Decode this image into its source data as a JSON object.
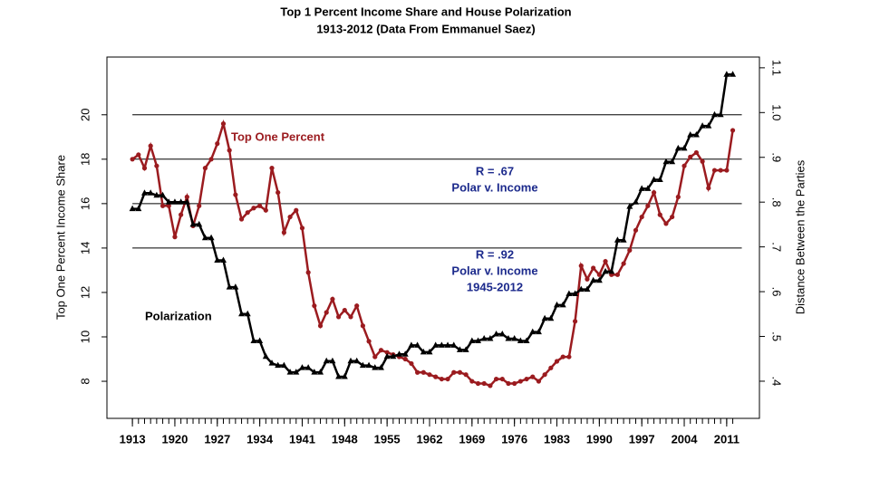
{
  "chart_data": {
    "type": "line",
    "title": "Top 1 Percent Income Share and House Polarization",
    "subtitle": "1913-2012 (Data From Emmanuel Saez)",
    "y_label": "Top One Percent Income Share",
    "y2_label": "Distance Between the Parties",
    "x": [
      1913,
      1914,
      1915,
      1916,
      1917,
      1918,
      1919,
      1920,
      1921,
      1922,
      1923,
      1924,
      1925,
      1926,
      1927,
      1928,
      1929,
      1930,
      1931,
      1932,
      1933,
      1934,
      1935,
      1936,
      1937,
      1938,
      1939,
      1940,
      1941,
      1942,
      1943,
      1944,
      1945,
      1946,
      1947,
      1948,
      1949,
      1950,
      1951,
      1952,
      1953,
      1954,
      1955,
      1956,
      1957,
      1958,
      1959,
      1960,
      1961,
      1962,
      1963,
      1964,
      1965,
      1966,
      1967,
      1968,
      1969,
      1970,
      1971,
      1972,
      1973,
      1974,
      1975,
      1976,
      1977,
      1978,
      1979,
      1980,
      1981,
      1982,
      1983,
      1984,
      1985,
      1986,
      1987,
      1988,
      1989,
      1990,
      1991,
      1992,
      1993,
      1994,
      1995,
      1996,
      1997,
      1998,
      1999,
      2000,
      2001,
      2002,
      2003,
      2004,
      2005,
      2006,
      2007,
      2008,
      2009,
      2010,
      2011,
      2012
    ],
    "series": [
      {
        "name": "Top One Percent",
        "color": "#9b1b1f",
        "marker": "circle",
        "axis": "y",
        "values": [
          18.0,
          18.2,
          17.6,
          18.6,
          17.7,
          15.9,
          15.9,
          14.5,
          15.5,
          16.3,
          15.0,
          15.9,
          17.6,
          18.0,
          18.7,
          19.6,
          18.4,
          16.4,
          15.3,
          15.6,
          15.8,
          15.9,
          15.7,
          17.6,
          16.5,
          14.7,
          15.4,
          15.7,
          14.9,
          12.9,
          11.4,
          10.5,
          11.1,
          11.7,
          10.9,
          11.2,
          10.9,
          11.4,
          10.5,
          9.8,
          9.1,
          9.4,
          9.3,
          9.2,
          9.1,
          9.0,
          8.8,
          8.4,
          8.4,
          8.3,
          8.2,
          8.1,
          8.1,
          8.4,
          8.4,
          8.3,
          8.0,
          7.9,
          7.9,
          7.8,
          8.1,
          8.1,
          7.9,
          7.9,
          8.0,
          8.1,
          8.2,
          8.0,
          8.3,
          8.6,
          8.9,
          9.1,
          9.1,
          10.7,
          13.2,
          12.6,
          13.1,
          12.8,
          13.4,
          12.8,
          12.8,
          13.3,
          13.9,
          14.8,
          15.4,
          15.9,
          16.5,
          15.5,
          15.1,
          15.4,
          16.3,
          17.7,
          18.1,
          18.3,
          17.9,
          16.7,
          17.5,
          17.5,
          17.5,
          19.3
        ]
      },
      {
        "name": "Polarization",
        "color": "#000000",
        "marker": "triangle",
        "axis": "y2",
        "values": [
          0.785,
          0.785,
          0.82,
          0.82,
          0.815,
          0.815,
          0.8,
          0.8,
          0.8,
          0.8,
          0.75,
          0.75,
          0.72,
          0.72,
          0.67,
          0.67,
          0.61,
          0.61,
          0.55,
          0.55,
          0.49,
          0.49,
          0.455,
          0.44,
          0.435,
          0.435,
          0.42,
          0.42,
          0.43,
          0.43,
          0.42,
          0.42,
          0.445,
          0.445,
          0.41,
          0.41,
          0.445,
          0.445,
          0.435,
          0.435,
          0.43,
          0.43,
          0.455,
          0.455,
          0.46,
          0.46,
          0.48,
          0.48,
          0.465,
          0.465,
          0.48,
          0.48,
          0.48,
          0.48,
          0.47,
          0.47,
          0.49,
          0.49,
          0.495,
          0.495,
          0.505,
          0.505,
          0.495,
          0.495,
          0.49,
          0.49,
          0.51,
          0.51,
          0.54,
          0.54,
          0.57,
          0.57,
          0.595,
          0.595,
          0.605,
          0.605,
          0.625,
          0.625,
          0.645,
          0.645,
          0.715,
          0.715,
          0.79,
          0.8,
          0.83,
          0.83,
          0.85,
          0.85,
          0.89,
          0.89,
          0.92,
          0.92,
          0.95,
          0.95,
          0.97,
          0.97,
          0.995,
          0.995,
          1.085,
          1.085
        ]
      }
    ],
    "annotations": [
      {
        "lines": [
          "R = .67",
          "Polar v. Income"
        ],
        "color": "#1c2a8c"
      },
      {
        "lines": [
          "R = .92",
          "Polar v. Income",
          "1945-2012"
        ],
        "color": "#1c2a8c"
      }
    ],
    "hlines": [
      14,
      16,
      18,
      20
    ],
    "xlim": [
      1908.8,
      2016.4
    ],
    "xticks": [
      1913,
      1920,
      1927,
      1934,
      1941,
      1948,
      1955,
      1962,
      1969,
      1976,
      1983,
      1990,
      1997,
      2004,
      2011
    ],
    "ylim": [
      6.33,
      22.6
    ],
    "yticks": [
      8,
      10,
      12,
      14,
      16,
      18,
      20
    ],
    "y2lim": [
      0.317,
      1.124
    ],
    "y2ticks": [
      {
        "value": 0.4,
        "label": ".4"
      },
      {
        "value": 0.5,
        "label": ".5"
      },
      {
        "value": 0.6,
        "label": ".6"
      },
      {
        "value": 0.7,
        "label": ".7"
      },
      {
        "value": 0.8,
        "label": ".8"
      },
      {
        "value": 0.9,
        "label": ".9"
      },
      {
        "value": 1.0,
        "label": "1.0"
      },
      1.1
    ]
  }
}
